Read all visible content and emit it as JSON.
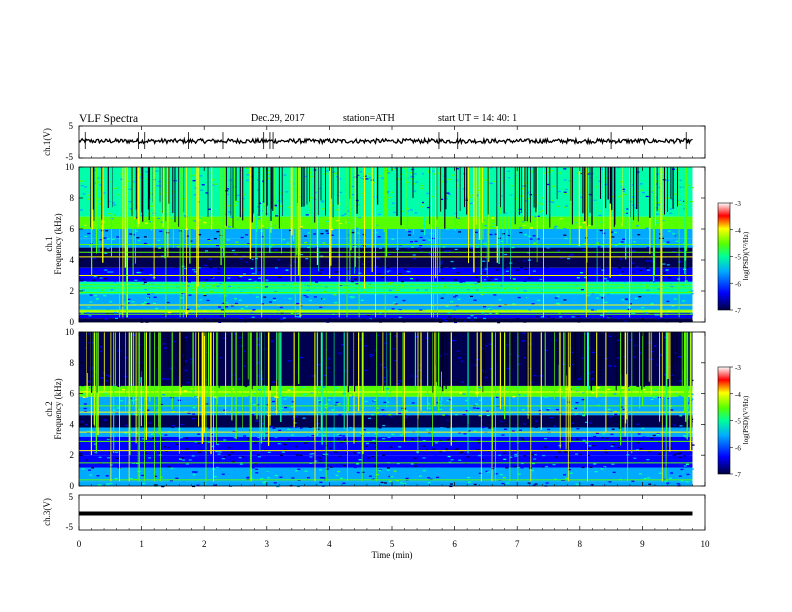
{
  "header": {
    "title": "VLF  Spectra",
    "date": "Dec.29, 2017",
    "station": "station=ATH",
    "start": "start  UT  =    14: 40: 1"
  },
  "colors": {
    "colormap": [
      "#000050",
      "#0000ff",
      "#00aaff",
      "#00ffaa",
      "#55ff00",
      "#ffff00",
      "#ff0000",
      "#ffffff"
    ],
    "waveform": "#000000"
  },
  "chart_data": [
    {
      "type": "line",
      "name": "waveform-ch1",
      "ylabel": "ch.1(V)",
      "ylim": [
        -5,
        5
      ],
      "yticks": [
        "5",
        "-5"
      ],
      "y_level_mean": 0.3,
      "spikes_min": [
        0.1,
        0.95,
        1.05,
        1.75,
        2.3,
        2.95,
        3.05,
        3.1,
        5.75,
        6.05,
        8.5,
        9.7
      ]
    },
    {
      "type": "heatmap",
      "name": "spectrogram-ch1",
      "ylabel": "ch.1 Frequency (kHz)",
      "xlim": [
        0,
        10
      ],
      "ylim": [
        0,
        10
      ],
      "yticks": [
        "0",
        "2",
        "4",
        "6",
        "8",
        "10"
      ],
      "data_end_min": 9.8,
      "colorbar": {
        "label": "log(PSD)(V²/Hz)",
        "range": [
          -7,
          -3
        ],
        "ticks": [
          "-3",
          "-4",
          "-5",
          "-6",
          "-7"
        ]
      },
      "bands_khz": [
        {
          "from": 0.0,
          "to": 0.25,
          "level": -7
        },
        {
          "from": 0.25,
          "to": 0.6,
          "level": -6.3
        },
        {
          "from": 0.6,
          "to": 0.8,
          "level": -5.0
        },
        {
          "from": 0.8,
          "to": 1.8,
          "level": -5.8
        },
        {
          "from": 1.8,
          "to": 2.6,
          "level": -5.3
        },
        {
          "from": 2.6,
          "to": 3.5,
          "level": -6.2
        },
        {
          "from": 3.5,
          "to": 4.8,
          "level": -6.6
        },
        {
          "from": 4.8,
          "to": 5.4,
          "level": -5.6
        },
        {
          "from": 5.4,
          "to": 6.0,
          "level": -6.0
        },
        {
          "from": 6.0,
          "to": 6.8,
          "level": -5.0
        },
        {
          "from": 6.8,
          "to": 10.0,
          "level": -5.3
        }
      ],
      "lines_khz": [
        0.5,
        0.7,
        1.1,
        1.9,
        2.2,
        2.4,
        3.0,
        4.2,
        4.5,
        5.0,
        6.3,
        6.6
      ]
    },
    {
      "type": "heatmap",
      "name": "spectrogram-ch2",
      "ylabel": "ch.2 Frequency (kHz)",
      "xlim": [
        0,
        10
      ],
      "ylim": [
        0,
        10
      ],
      "yticks": [
        "0",
        "2",
        "4",
        "6",
        "8",
        "10"
      ],
      "data_end_min": 9.8,
      "colorbar": {
        "label": "log(PSD)(V²/Hz)",
        "range": [
          -7,
          -3
        ],
        "ticks": [
          "-3",
          "-4",
          "-5",
          "-6",
          "-7"
        ]
      },
      "bands_khz": [
        {
          "from": 0.0,
          "to": 0.3,
          "level": -6.0
        },
        {
          "from": 0.3,
          "to": 1.2,
          "level": -5.7
        },
        {
          "from": 1.2,
          "to": 2.0,
          "level": -6.2
        },
        {
          "from": 2.0,
          "to": 3.2,
          "level": -6.5
        },
        {
          "from": 3.2,
          "to": 3.8,
          "level": -5.8
        },
        {
          "from": 3.8,
          "to": 4.6,
          "level": -6.6
        },
        {
          "from": 4.6,
          "to": 5.8,
          "level": -5.7
        },
        {
          "from": 5.8,
          "to": 6.5,
          "level": -5.0
        },
        {
          "from": 6.5,
          "to": 10.0,
          "level": -6.8
        }
      ],
      "lines_khz": [
        0.4,
        1.5,
        2.3,
        2.9,
        3.5,
        4.8,
        5.2,
        6.1
      ]
    },
    {
      "type": "line",
      "name": "waveform-ch3",
      "ylabel": "ch.3(V)",
      "ylim": [
        -5,
        5
      ],
      "yticks": [
        "5",
        "-5"
      ],
      "y_level_mean": -0.3
    }
  ],
  "x_axis": {
    "xlabel": "Time  (min)",
    "xlim": [
      0,
      10
    ],
    "ticks": [
      "0",
      "1",
      "2",
      "3",
      "4",
      "5",
      "6",
      "7",
      "8",
      "9",
      "10"
    ]
  }
}
